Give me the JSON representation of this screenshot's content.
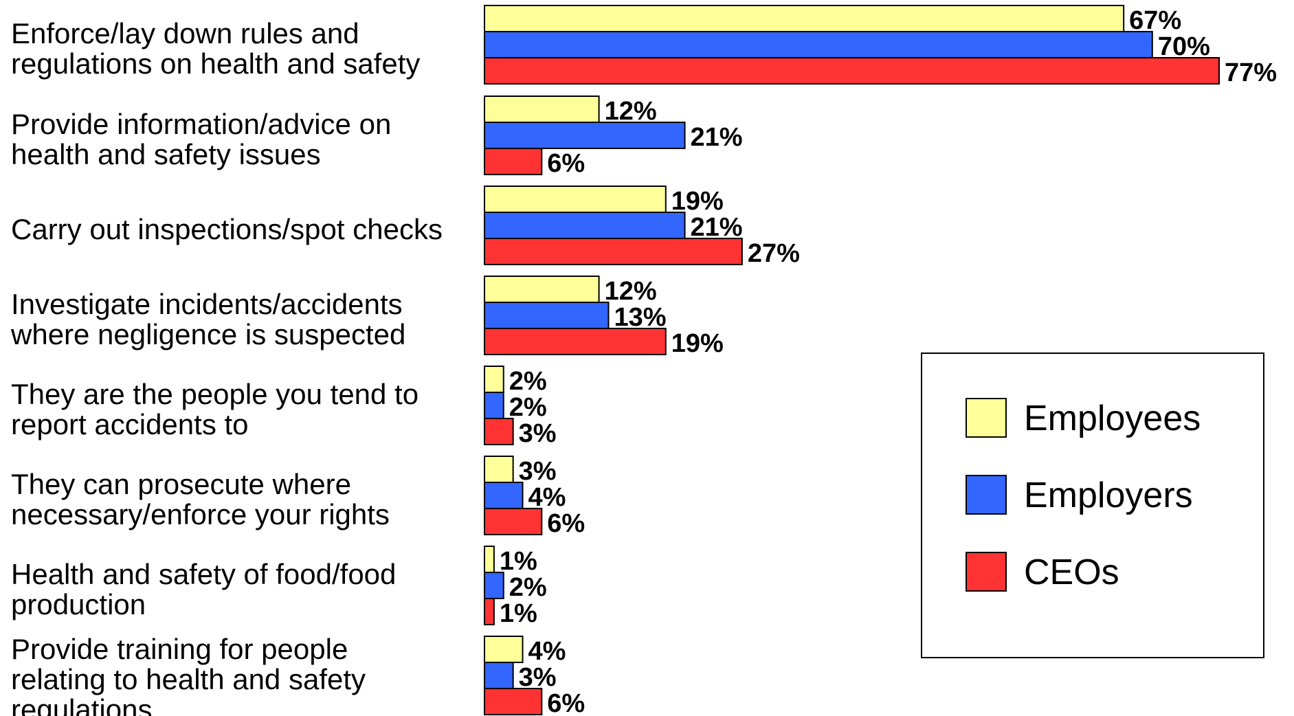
{
  "chart_data": {
    "type": "bar",
    "orientation": "horizontal",
    "categories": [
      [
        "Enforce/lay down rules and",
        "regulations on health and safety"
      ],
      [
        "Provide information/advice on",
        "health and safety issues"
      ],
      [
        "Carry out inspections/spot checks"
      ],
      [
        "Investigate incidents/accidents",
        "where negligence is suspected"
      ],
      [
        "They are the people you tend to",
        "report accidents to"
      ],
      [
        "They can prosecute where",
        "necessary/enforce your rights"
      ],
      [
        "Health and safety of food/food",
        "production"
      ],
      [
        "Provide training for people",
        "relating to health and safety",
        "regulations"
      ]
    ],
    "series": [
      {
        "name": "Employees",
        "color": "#ffff99",
        "values": [
          67,
          12,
          19,
          12,
          2,
          3,
          1,
          4
        ],
        "labels": [
          "67%",
          "12%",
          "19%",
          "12%",
          "2%",
          "3%",
          "1%",
          "4%"
        ]
      },
      {
        "name": "Employers",
        "color": "#3366ff",
        "values": [
          70,
          21,
          21,
          13,
          2,
          4,
          2,
          3
        ],
        "labels": [
          "70%",
          "21%",
          "21%",
          "13%",
          "2%",
          "4%",
          "2%",
          "3%"
        ]
      },
      {
        "name": "CEOs",
        "color": "#ff3333",
        "values": [
          77,
          6,
          27,
          19,
          3,
          6,
          1,
          6
        ],
        "labels": [
          "77%",
          "6%",
          "27%",
          "19%",
          "3%",
          "6%",
          "1%",
          "6%"
        ]
      }
    ],
    "legend_position": "right",
    "grid": false,
    "xlim": [
      0,
      77
    ]
  }
}
